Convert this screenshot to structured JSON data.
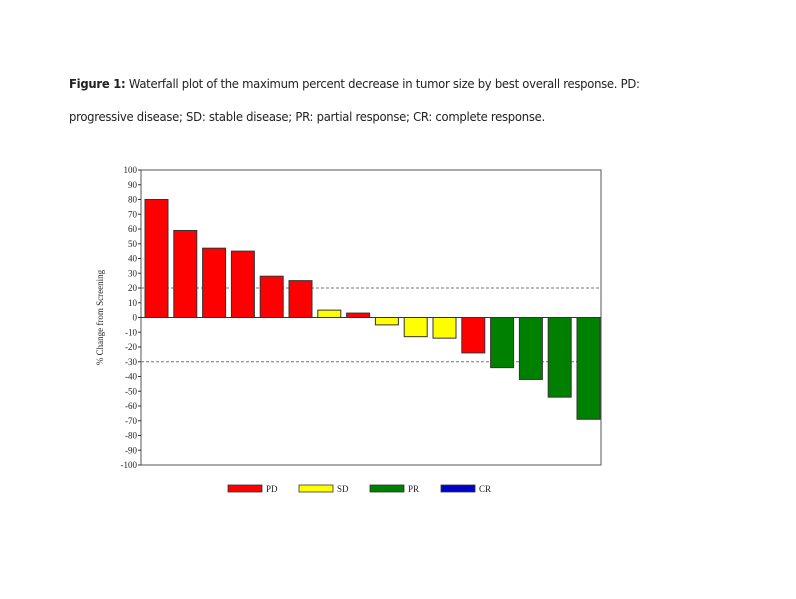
{
  "caption": {
    "label": "Figure 1:",
    "line1": "Waterfall plot of the maximum percent decrease in tumor size by best overall response. PD:",
    "line2": "progressive disease; SD: stable disease; PR: partial response; CR: complete response."
  },
  "chart_data": {
    "type": "bar",
    "title": "",
    "xlabel": "",
    "ylabel": "% Change from Screening",
    "ylim": [
      -100,
      100
    ],
    "yticks": [
      100,
      90,
      80,
      70,
      60,
      50,
      40,
      30,
      20,
      10,
      0,
      -10,
      -20,
      -30,
      -40,
      -50,
      -60,
      -70,
      -80,
      -90,
      -100
    ],
    "reference_lines": [
      20,
      -30
    ],
    "grid": false,
    "legend_position": "bottom",
    "legend": [
      {
        "name": "PD",
        "color": "#ff0000"
      },
      {
        "name": "SD",
        "color": "#ffff00"
      },
      {
        "name": "PR",
        "color": "#008000"
      },
      {
        "name": "CR",
        "color": "#0000cc"
      }
    ],
    "values": [
      80,
      59,
      47,
      45,
      28,
      25,
      5,
      3,
      -5,
      -13,
      -14,
      -24,
      -34,
      -42,
      -54,
      -69
    ],
    "response": [
      "PD",
      "PD",
      "PD",
      "PD",
      "PD",
      "PD",
      "SD",
      "PD",
      "SD",
      "SD",
      "SD",
      "PD",
      "PR",
      "PR",
      "PR",
      "PR"
    ]
  }
}
